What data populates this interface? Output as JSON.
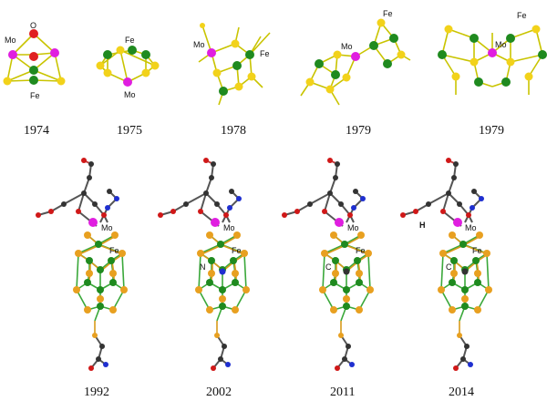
{
  "colors": {
    "sulfur": "#f2d21a",
    "sulfur_orange": "#e8a020",
    "iron": "#1f8a1f",
    "molybdenum": "#e01ee0",
    "oxygen": "#e02020",
    "carbon": "#333333",
    "nitrogen": "#1f2fd0",
    "oxygen_small": "#d01818"
  },
  "models": [
    {
      "year": "1974",
      "labels": {
        "mo": "Mo",
        "o": "O",
        "fe": "Fe"
      }
    },
    {
      "year": "1975",
      "labels": {
        "fe": "Fe",
        "mo": "Mo"
      }
    },
    {
      "year": "1978",
      "labels": {
        "mo": "Mo",
        "fe": "Fe"
      }
    },
    {
      "year": "1979",
      "labels": {
        "fe": "Fe",
        "mo": "Mo"
      }
    },
    {
      "year": "1979",
      "labels": {
        "fe": "Fe",
        "mo": "Mo"
      }
    },
    {
      "year": "1992",
      "labels": {
        "mo": "Mo",
        "fe": "Fe"
      }
    },
    {
      "year": "2002",
      "labels": {
        "mo": "Mo",
        "fe": "Fe",
        "center": "N"
      }
    },
    {
      "year": "2011",
      "labels": {
        "mo": "Mo",
        "fe": "Fe",
        "center": "C"
      }
    },
    {
      "year": "2014",
      "labels": {
        "mo": "Mo",
        "fe": "Fe",
        "center": "C",
        "h": "H"
      }
    }
  ]
}
